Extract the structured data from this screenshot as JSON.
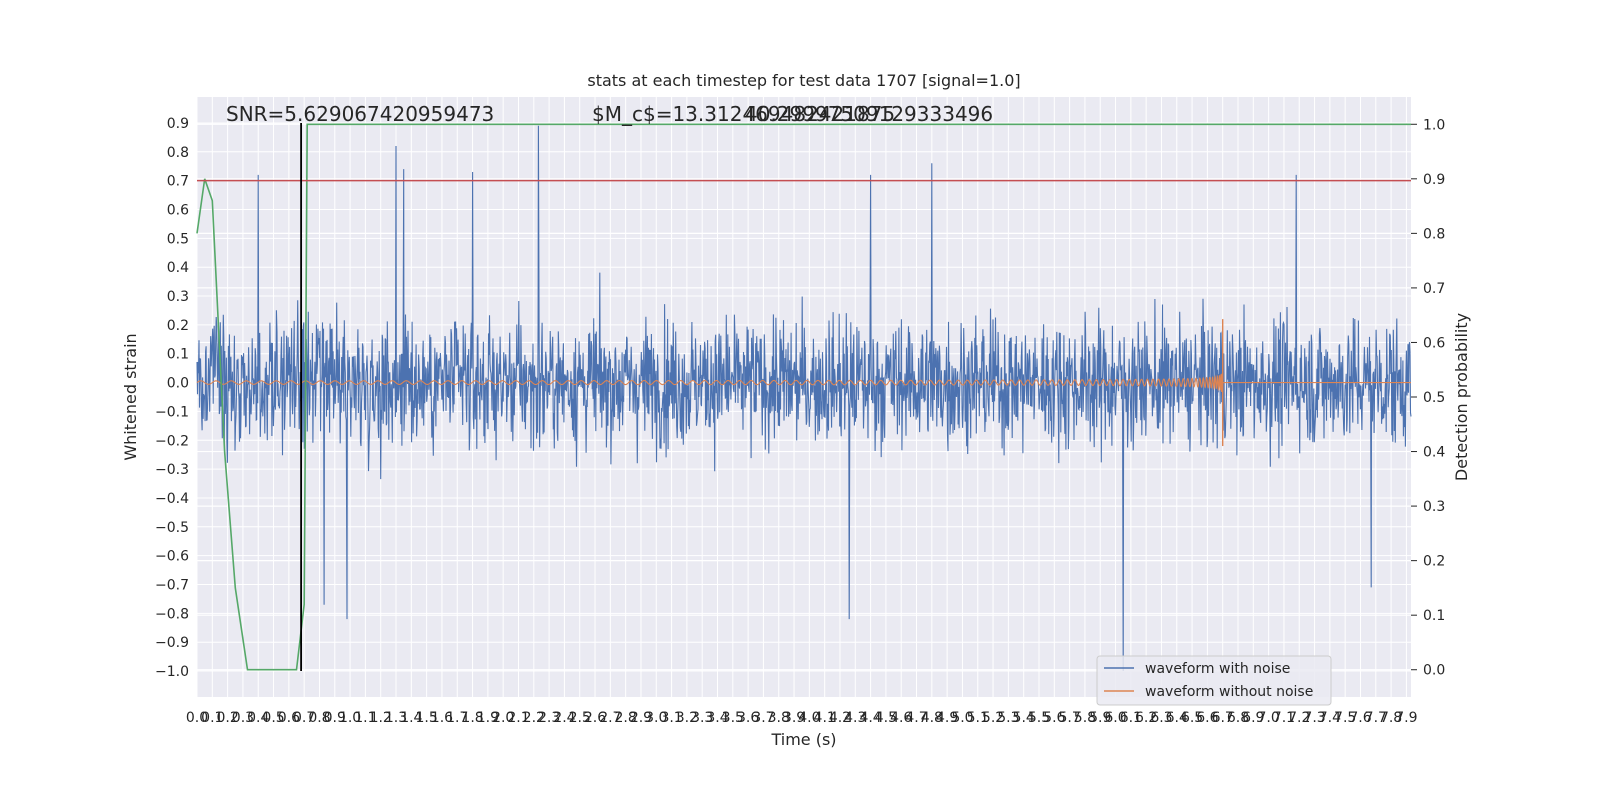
{
  "chart_data": {
    "type": "line",
    "title": "stats at each timestep for test data 1707 [signal=1.0]",
    "xlabel": "Time (s)",
    "ylabel": "Whitened strain",
    "y2label": "Detection probability",
    "xlim": [
      0.0,
      7.93
    ],
    "ylim": [
      -1.09,
      0.99
    ],
    "y2lim": [
      -0.05,
      1.05
    ],
    "x_ticks": [
      "0.0",
      "0.1",
      "0.2",
      "0.3",
      "0.4",
      "0.5",
      "0.6",
      "0.7",
      "0.8",
      "0.9",
      "1.0",
      "1.1",
      "1.2",
      "1.3",
      "1.4",
      "1.5",
      "1.6",
      "1.7",
      "1.8",
      "1.9",
      "2.0",
      "2.1",
      "2.2",
      "2.3",
      "2.4",
      "2.5",
      "2.6",
      "2.7",
      "2.8",
      "2.9",
      "3.0",
      "3.1",
      "3.2",
      "3.3",
      "3.4",
      "3.5",
      "3.6",
      "3.7",
      "3.8",
      "3.9",
      "4.0",
      "4.1",
      "4.2",
      "4.3",
      "4.4",
      "4.5",
      "4.6",
      "4.7",
      "4.8",
      "4.9",
      "5.0",
      "5.1",
      "5.2",
      "5.3",
      "5.4",
      "5.5",
      "5.6",
      "5.7",
      "5.8",
      "5.9",
      "6.0",
      "6.1",
      "6.2",
      "6.3",
      "6.4",
      "6.5",
      "6.6",
      "6.7",
      "6.8",
      "6.9",
      "7.0",
      "7.1",
      "7.2",
      "7.3",
      "7.4",
      "7.5",
      "7.6",
      "7.7",
      "7.8",
      "7.9"
    ],
    "y_ticks": [
      "0.9",
      "0.8",
      "0.7",
      "0.6",
      "0.5",
      "0.4",
      "0.3",
      "0.2",
      "0.1",
      "0.0",
      "−0.1",
      "−0.2",
      "−0.3",
      "−0.4",
      "−0.5",
      "−0.6",
      "−0.7",
      "−0.8",
      "−0.9",
      "−1.0"
    ],
    "y2_ticks": [
      "1.0",
      "0.9",
      "0.8",
      "0.7",
      "0.6",
      "0.5",
      "0.4",
      "0.3",
      "0.2",
      "0.1",
      "0.0"
    ],
    "grid": true,
    "legend_position": "lower-right",
    "series": [
      {
        "name": "waveform with noise",
        "axis": "left",
        "color": "#4c72b0",
        "envelope_typical": 0.42,
        "peaks": [
          {
            "x": 0.4,
            "y": 0.72
          },
          {
            "x": 1.3,
            "y": 0.82
          },
          {
            "x": 1.35,
            "y": 0.74
          },
          {
            "x": 1.8,
            "y": 0.73
          },
          {
            "x": 2.23,
            "y": 0.89
          },
          {
            "x": 4.4,
            "y": 0.72
          },
          {
            "x": 4.8,
            "y": 0.76
          },
          {
            "x": 7.18,
            "y": 0.72
          },
          {
            "x": 6.05,
            "y": -1.0
          },
          {
            "x": 4.26,
            "y": -0.82
          },
          {
            "x": 0.98,
            "y": -0.82
          },
          {
            "x": 0.83,
            "y": -0.77
          },
          {
            "x": 7.67,
            "y": -0.71
          }
        ]
      },
      {
        "name": "waveform without noise",
        "axis": "left",
        "color": "#dd8452",
        "chirp_merger_time": 6.7,
        "peak_amplitude": 0.22
      },
      {
        "name": "detection probability",
        "axis": "right",
        "color": "#55a868",
        "x": [
          0.0,
          0.05,
          0.1,
          0.18,
          0.25,
          0.33,
          0.4,
          0.5,
          0.6,
          0.65,
          0.7,
          0.72,
          7.93
        ],
        "y": [
          0.8,
          0.9,
          0.86,
          0.4,
          0.15,
          0.0,
          -0.0,
          0.0,
          0.0,
          0.0,
          0.12,
          1.0,
          1.0
        ]
      }
    ],
    "hlines": [
      {
        "axis": "left",
        "y": 0.7,
        "color": "#c44e52"
      }
    ],
    "vlines": [
      {
        "axis": "left",
        "x": 0.68,
        "ymin": -1.0,
        "ymax": 0.9,
        "color": "#000000"
      }
    ],
    "annotations": [
      {
        "text": "SNR=5.629067420959473"
      },
      {
        "text": "$M_c$=13.312469482421875"
      },
      {
        "text": "40.29997509129333496"
      }
    ]
  }
}
